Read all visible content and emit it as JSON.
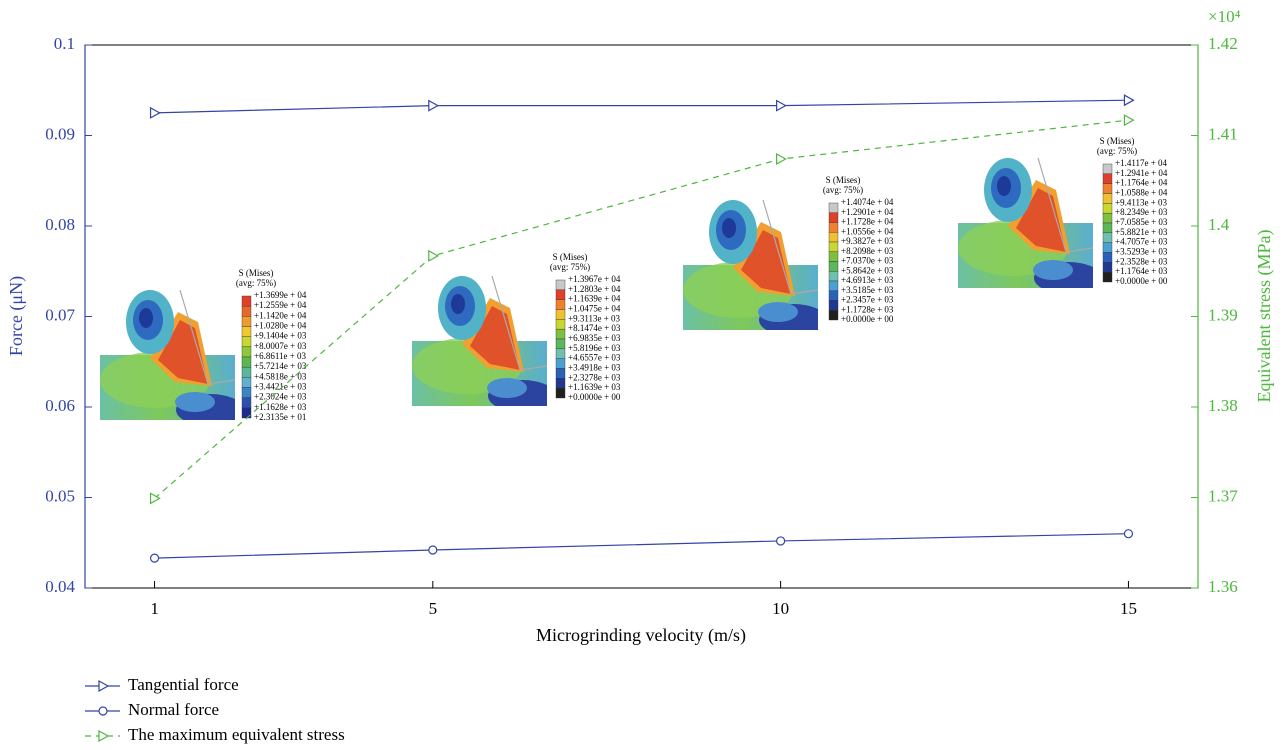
{
  "chart_data": {
    "type": "line",
    "x_label": "Microgrinding velocity (m/s)",
    "y_label": "Force (μN)",
    "y2_label": "Equivalent stress (MPa)",
    "y2_multiplier": "×10⁴",
    "x": [
      1,
      5,
      10,
      15
    ],
    "xlim": [
      0,
      16
    ],
    "xticks": [
      1,
      5,
      10,
      15
    ],
    "ylim": [
      0.04,
      0.1
    ],
    "yticks": [
      0.04,
      0.05,
      0.06,
      0.07,
      0.08,
      0.09,
      0.1
    ],
    "y2lim": [
      1.36,
      1.42
    ],
    "y2ticks": [
      1.36,
      1.37,
      1.38,
      1.39,
      1.4,
      1.41,
      1.42
    ],
    "legend": "bottom",
    "series": [
      {
        "name": "Tangential force",
        "color": "#3344a4",
        "marker": "triangle",
        "dash": false,
        "values": [
          0.0925,
          0.0933,
          0.0933,
          0.0939
        ]
      },
      {
        "name": "Normal force",
        "color": "#3344a4",
        "marker": "circle",
        "dash": false,
        "values": [
          0.0433,
          0.0442,
          0.0452,
          0.046
        ]
      },
      {
        "name": "The maximum equivalent stress",
        "color": "#4cb83c",
        "marker": "triangle",
        "dash": true,
        "axis": "y2",
        "values": [
          1.3699,
          1.3967,
          1.4074,
          1.4117
        ]
      }
    ],
    "insets": [
      {
        "title": "S (Mises)",
        "subtitle": "(avg: 75%)",
        "labels": [
          "+1.3699e + 04",
          "+1.2559e + 04",
          "+1.1420e + 04",
          "+1.0280e + 04",
          "+9.1404e + 03",
          "+8.0007e + 03",
          "+6.8611e + 03",
          "+5.7214e + 03",
          "+4.5818e + 03",
          "+3.4421e + 03",
          "+2.3024e + 03",
          "+1.1628e + 03",
          "+2.3135e + 01"
        ]
      },
      {
        "title": "S (Mises)",
        "subtitle": "(avg: 75%)",
        "labels": [
          "+1.3967e + 04",
          "+1.2803e + 04",
          "+1.1639e + 04",
          "+1.0475e + 04",
          "+9.3113e + 03",
          "+8.1474e + 03",
          "+6.9835e + 03",
          "+5.8196e + 03",
          "+4.6557e + 03",
          "+3.4918e + 03",
          "+2.3278e + 03",
          "+1.1639e + 03",
          "+0.0000e + 00"
        ]
      },
      {
        "title": "S (Mises)",
        "subtitle": "(avg: 75%)",
        "labels": [
          "+1.4074e + 04",
          "+1.2901e + 04",
          "+1.1728e + 04",
          "+1.0556e + 04",
          "+9.3827e + 03",
          "+8.2098e + 03",
          "+7.0370e + 03",
          "+5.8642e + 03",
          "+4.6913e + 03",
          "+3.5185e + 03",
          "+2.3457e + 03",
          "+1.1728e + 03",
          "+0.0000e + 00"
        ]
      },
      {
        "title": "S (Mises)",
        "subtitle": "(avg: 75%)",
        "labels": [
          "+1.4117e + 04",
          "+1.2941e + 04",
          "+1.1764e + 04",
          "+1.0588e + 04",
          "+9.4113e + 03",
          "+8.2349e + 03",
          "+7.0585e + 03",
          "+5.8821e + 03",
          "+4.7057e + 03",
          "+3.5293e + 03",
          "+2.3528e + 03",
          "+1.1764e + 03",
          "+0.0000e + 00"
        ]
      }
    ]
  }
}
